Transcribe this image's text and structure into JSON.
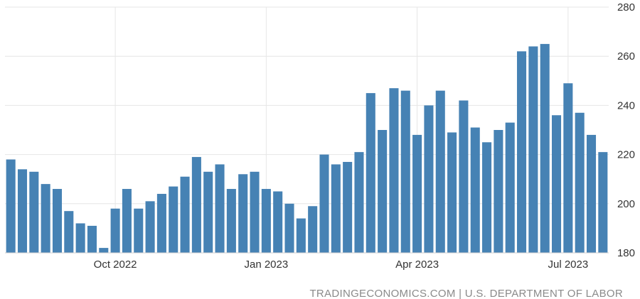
{
  "chart_data": {
    "type": "bar",
    "title": "",
    "xlabel": "",
    "ylabel": "",
    "ylim": [
      180,
      280
    ],
    "yticks": [
      180,
      200,
      220,
      240,
      260,
      280
    ],
    "y_axis_side": "right",
    "grid": true,
    "bar_color": "#4682b4",
    "x_tick_labels": [
      {
        "label": "Oct 2022",
        "bar_index": 9
      },
      {
        "label": "Jan 2023",
        "bar_index": 22
      },
      {
        "label": "Apr 2023",
        "bar_index": 35
      },
      {
        "label": "Jul 2023",
        "bar_index": 48
      }
    ],
    "values": [
      218,
      214,
      213,
      208,
      206,
      197,
      192,
      191,
      182,
      198,
      206,
      198,
      201,
      204,
      207,
      211,
      219,
      213,
      216,
      206,
      212,
      213,
      206,
      205,
      200,
      194,
      199,
      220,
      216,
      217,
      221,
      245,
      230,
      247,
      246,
      228,
      240,
      246,
      229,
      242,
      231,
      225,
      230,
      233,
      262,
      264,
      265,
      236,
      249,
      237,
      228,
      221
    ]
  },
  "source_text": "TRADINGECONOMICS.COM | U.S. DEPARTMENT OF LABOR"
}
